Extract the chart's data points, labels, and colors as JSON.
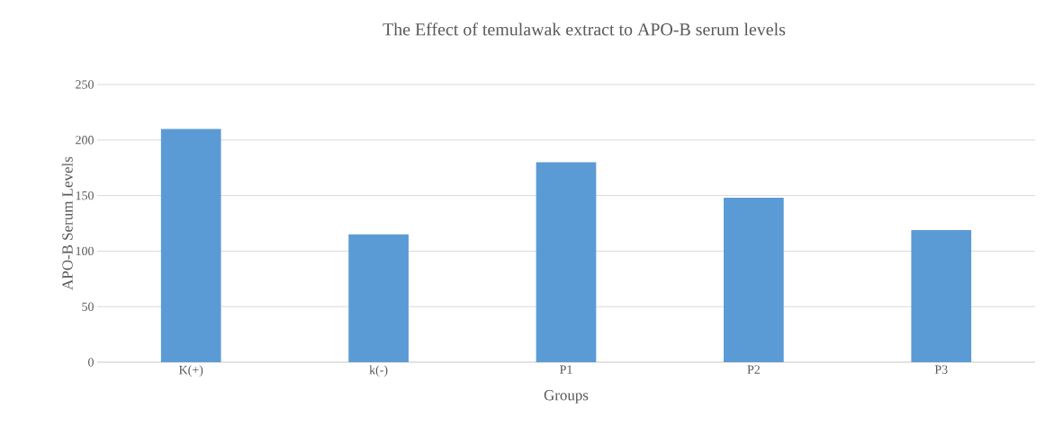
{
  "chart_data": {
    "type": "bar",
    "title": "The Effect of temulawak extract to APO-B serum levels",
    "xlabel": "Groups",
    "ylabel": "APO-B Serum Levels",
    "categories": [
      "K(+)",
      "k(-)",
      "P1",
      "P2",
      "P3"
    ],
    "values": [
      210,
      115,
      180,
      148,
      119
    ],
    "color": "#5b9bd5",
    "ylim": [
      0,
      250
    ],
    "yticks": [
      0,
      50,
      100,
      150,
      200,
      250
    ],
    "grid": "y"
  }
}
